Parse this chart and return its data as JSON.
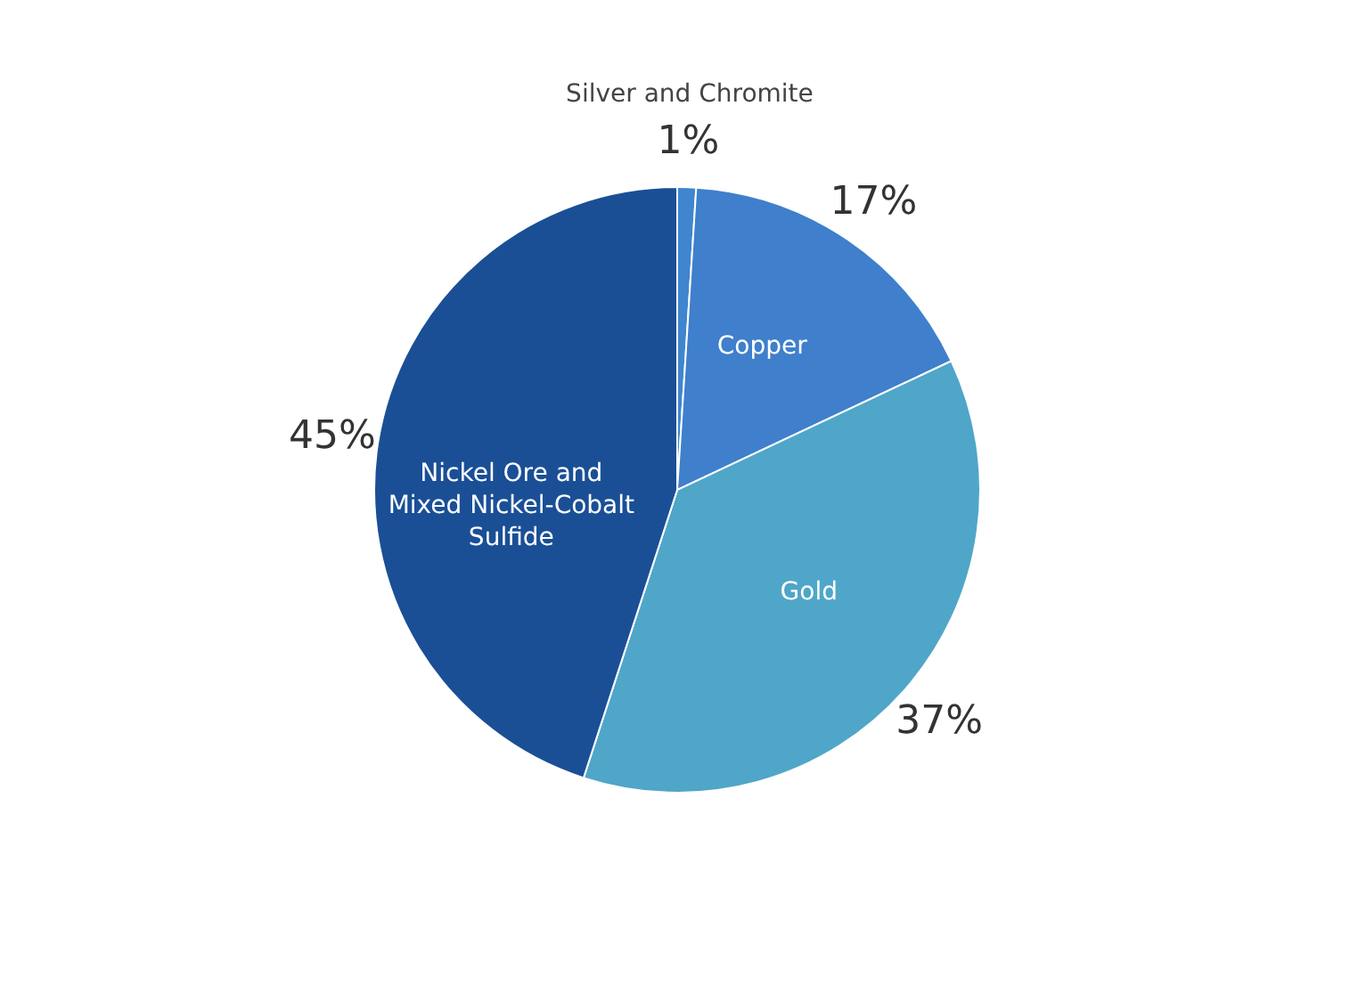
{
  "chart_data": {
    "type": "pie",
    "categories": [
      "Silver and Chromite",
      "Copper",
      "Gold",
      "Nickel Ore and Mixed Nickel-Cobalt Sulfide"
    ],
    "values": [
      1,
      17,
      37,
      45
    ],
    "colors": [
      "#3f86cf",
      "#3f7fcc",
      "#4fa6c9",
      "#1a4f96"
    ],
    "value_labels": [
      "1%",
      "17%",
      "37%",
      "45%"
    ],
    "legend": false
  }
}
